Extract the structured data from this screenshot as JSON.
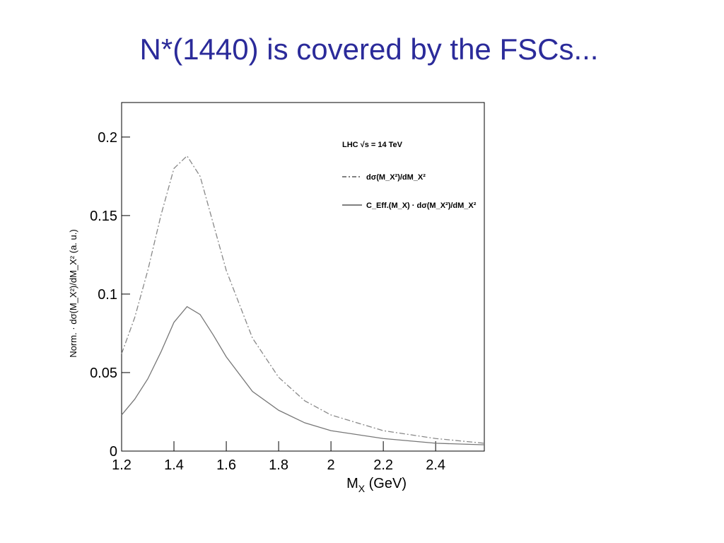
{
  "title": "N*(1440) is covered by the FSCs...",
  "chart_data": {
    "type": "line",
    "x_label": [
      "M",
      "X",
      " (GeV)"
    ],
    "y_label": "Norm. · dσ(M_X²)/dM_X² (a. u.)",
    "annotation": "LHC √s = 14 TeV",
    "x": [
      1.2,
      1.25,
      1.3,
      1.35,
      1.4,
      1.45,
      1.5,
      1.55,
      1.6,
      1.7,
      1.8,
      1.9,
      2.0,
      2.2,
      2.4,
      2.586
    ],
    "series": [
      {
        "name": "dσ(M_X²)/dM_X²",
        "color": "#888888",
        "dash": true,
        "values": [
          0.062,
          0.085,
          0.115,
          0.15,
          0.18,
          0.188,
          0.175,
          0.145,
          0.115,
          0.072,
          0.047,
          0.032,
          0.023,
          0.013,
          0.008,
          0.005
        ]
      },
      {
        "name": "C_Eff.(M_X) · dσ(M_X²)/dM_X²",
        "color": "#777777",
        "dash": false,
        "values": [
          0.023,
          0.033,
          0.046,
          0.063,
          0.082,
          0.092,
          0.087,
          0.074,
          0.06,
          0.038,
          0.026,
          0.018,
          0.013,
          0.008,
          0.005,
          0.004
        ]
      }
    ],
    "xlim": [
      1.2,
      2.586
    ],
    "ylim": [
      0,
      0.222
    ],
    "xticks": [
      1.2,
      1.4,
      1.6,
      1.8,
      2,
      2.2,
      2.4
    ],
    "yticks": [
      0,
      0.05,
      0.1,
      0.15,
      0.2
    ],
    "grid": false
  }
}
